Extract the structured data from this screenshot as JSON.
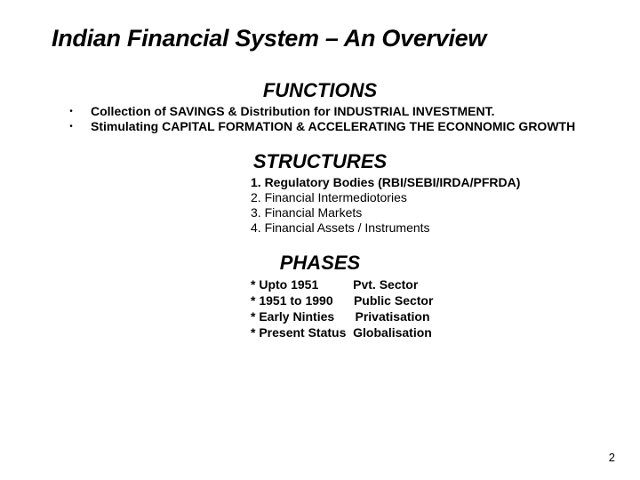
{
  "title": "Indian Financial System – An Overview",
  "sections": {
    "functions": {
      "heading": "FUNCTIONS",
      "items": [
        "Collection of SAVINGS & Distribution for INDUSTRIAL INVESTMENT.",
        "Stimulating CAPITAL FORMATION & ACCELERATING THE ECONNOMIC GROWTH"
      ]
    },
    "structures": {
      "heading": "STRUCTURES",
      "items": [
        "1. Regulatory Bodies (RBI/SEBI/IRDA/PFRDA)",
        "2. Financial Intermediotories",
        "3. Financial Markets",
        "4. Financial Assets / Instruments"
      ]
    },
    "phases": {
      "heading": "PHASES",
      "items": [
        "* Upto 1951          Pvt. Sector",
        "* 1951 to 1990      Public Sector",
        "* Early Ninties      Privatisation",
        "* Present Status  Globalisation"
      ]
    }
  },
  "page_number": "2",
  "colors": {
    "background": "#ffffff",
    "text": "#000000"
  },
  "typography": {
    "title_fontsize": 27,
    "heading_fontsize": 22,
    "body_fontsize": 14
  }
}
